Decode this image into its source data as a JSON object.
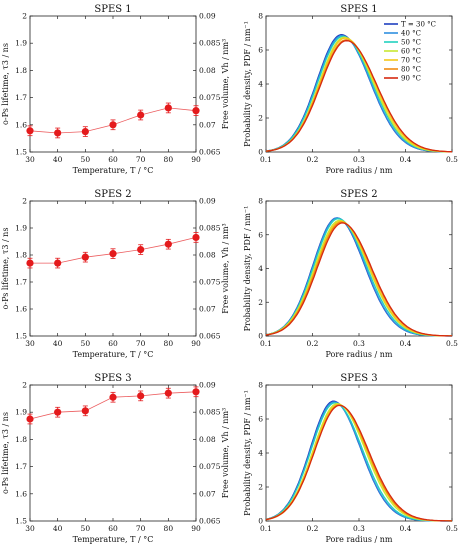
{
  "colors": {
    "lifetime": "#e41a1c",
    "temp_series": [
      "#1f3fbf",
      "#2f8fe0",
      "#22d0c0",
      "#c8e832",
      "#f3c81a",
      "#f08a10",
      "#d62a10"
    ]
  },
  "chart_data": [
    {
      "type": "scatter",
      "title": "SPES 1",
      "xlabel": "Temperature, T / °C",
      "ylabel": "o-Ps lifetime, τ3 / ns",
      "ylabel_right": "Free volume, Vh / nm³",
      "xlim": [
        30,
        90
      ],
      "ylim": [
        1.5,
        2.0
      ],
      "ylim_right": [
        0.065,
        0.09
      ],
      "xticks": [
        "30",
        "40",
        "50",
        "60",
        "70",
        "80",
        "90"
      ],
      "yticks": [
        "1.5",
        "1.6",
        "1.7",
        "1.8",
        "1.9",
        "2"
      ],
      "yticks_right": [
        "0.065",
        "0.07",
        "0.075",
        "0.08",
        "0.085",
        "0.09"
      ],
      "x": [
        30,
        40,
        50,
        60,
        70,
        80,
        90
      ],
      "y": [
        1.578,
        1.57,
        1.575,
        1.6,
        1.636,
        1.662,
        1.652
      ],
      "err": 0.018
    },
    {
      "type": "line",
      "title": "SPES 1",
      "xlabel": "Pore radius / nm",
      "ylabel": "Probability density, PDF / nm⁻¹",
      "xlim": [
        0.1,
        0.5
      ],
      "ylim": [
        0,
        8
      ],
      "xticks": [
        "0.1",
        "0.2",
        "0.3",
        "0.4",
        "0.5"
      ],
      "yticks": [
        "0",
        "2",
        "4",
        "6",
        "8"
      ],
      "legend": [
        "T = 30 °C",
        "40 °C",
        "50 °C",
        "60 °C",
        "70 °C",
        "80 °C",
        "90 °C"
      ],
      "legend_position": "top-right",
      "peaks": [
        0.262,
        0.263,
        0.265,
        0.268,
        0.27,
        0.272,
        0.273
      ],
      "heights": [
        6.9,
        6.85,
        6.8,
        6.75,
        6.7,
        6.6,
        6.55
      ],
      "sigmas": [
        0.057,
        0.057,
        0.058,
        0.058,
        0.059,
        0.06,
        0.06
      ]
    },
    {
      "type": "scatter",
      "title": "SPES 2",
      "xlabel": "Temperature, T / °C",
      "ylabel": "o-Ps lifetime, τ3 / ns",
      "ylabel_right": "Free volume, Vh / nm³",
      "xlim": [
        30,
        90
      ],
      "ylim": [
        1.5,
        2.0
      ],
      "ylim_right": [
        0.065,
        0.09
      ],
      "xticks": [
        "30",
        "40",
        "50",
        "60",
        "70",
        "80",
        "90"
      ],
      "yticks": [
        "1.5",
        "1.6",
        "1.7",
        "1.8",
        "1.9",
        "2"
      ],
      "yticks_right": [
        "0.065",
        "0.07",
        "0.075",
        "0.08",
        "0.085",
        "0.09"
      ],
      "x": [
        30,
        40,
        50,
        60,
        70,
        80,
        90
      ],
      "y": [
        1.77,
        1.77,
        1.792,
        1.805,
        1.82,
        1.84,
        1.865
      ],
      "err": 0.018
    },
    {
      "type": "line",
      "title": "SPES 2",
      "xlabel": "Pore radius / nm",
      "ylabel": "Probability density, PDF / nm⁻¹",
      "xlim": [
        0.1,
        0.5
      ],
      "ylim": [
        0,
        8
      ],
      "xticks": [
        "0.1",
        "0.2",
        "0.3",
        "0.4",
        "0.5"
      ],
      "yticks": [
        "0",
        "2",
        "4",
        "6",
        "8"
      ],
      "peaks": [
        0.252,
        0.253,
        0.255,
        0.258,
        0.26,
        0.262,
        0.264
      ],
      "heights": [
        7.0,
        7.0,
        6.95,
        6.85,
        6.8,
        6.75,
        6.7
      ],
      "sigmas": [
        0.055,
        0.055,
        0.056,
        0.057,
        0.057,
        0.058,
        0.058
      ]
    },
    {
      "type": "scatter",
      "title": "SPES 3",
      "xlabel": "Temperature, T / °C",
      "ylabel": "o-Ps lifetime, τ3 / ns",
      "ylabel_right": "Free volume, Vh / nm³",
      "xlim": [
        30,
        90
      ],
      "ylim": [
        1.5,
        2.0
      ],
      "ylim_right": [
        0.065,
        0.09
      ],
      "xticks": [
        "30",
        "40",
        "50",
        "60",
        "70",
        "80",
        "90"
      ],
      "yticks": [
        "1.5",
        "1.6",
        "1.7",
        "1.8",
        "1.9",
        "2"
      ],
      "yticks_right": [
        "0.065",
        "0.07",
        "0.075",
        "0.08",
        "0.085",
        "0.09"
      ],
      "x": [
        30,
        40,
        50,
        60,
        70,
        80,
        90
      ],
      "y": [
        1.875,
        1.9,
        1.905,
        1.955,
        1.96,
        1.97,
        1.975
      ],
      "err": 0.018
    },
    {
      "type": "line",
      "title": "SPES 3",
      "xlabel": "Pore radius / nm",
      "ylabel": "Probability density, PDF / nm⁻¹",
      "xlim": [
        0.1,
        0.5
      ],
      "ylim": [
        0,
        8
      ],
      "xticks": [
        "0.1",
        "0.2",
        "0.3",
        "0.4",
        "0.5"
      ],
      "yticks": [
        "0",
        "2",
        "4",
        "6",
        "8"
      ],
      "peaks": [
        0.245,
        0.246,
        0.248,
        0.253,
        0.255,
        0.257,
        0.258
      ],
      "heights": [
        7.05,
        7.0,
        6.95,
        6.9,
        6.85,
        6.82,
        6.8
      ],
      "sigmas": [
        0.054,
        0.054,
        0.055,
        0.056,
        0.057,
        0.057,
        0.058
      ]
    }
  ]
}
